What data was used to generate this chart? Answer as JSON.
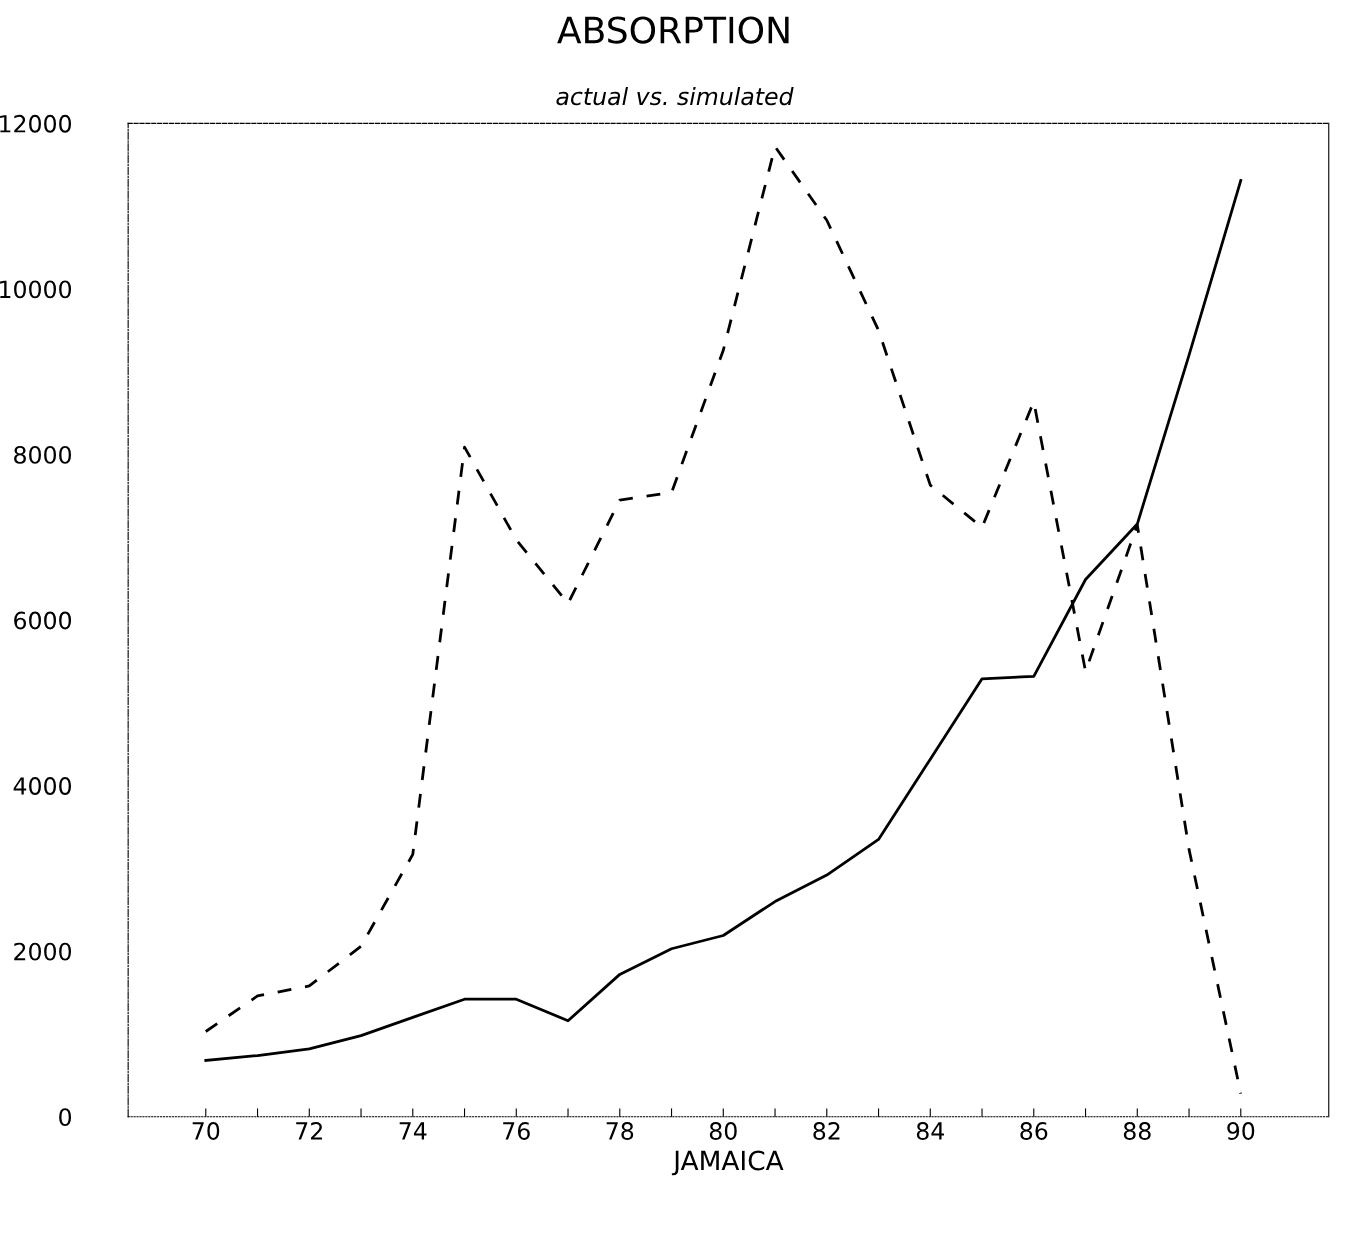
{
  "chart_data": {
    "type": "line",
    "title": "ABSORPTION",
    "subtitle": "actual vs. simulated",
    "xlabel": "JAMAICA",
    "x": [
      70,
      71,
      72,
      73,
      74,
      75,
      76,
      77,
      78,
      79,
      80,
      81,
      82,
      83,
      84,
      85,
      86,
      87,
      88,
      89,
      90
    ],
    "series": [
      {
        "color": "#000000",
        "line_style": "solid",
        "values": [
          680,
          740,
          820,
          980,
          1200,
          1420,
          1420,
          1160,
          1720,
          2030,
          2190,
          2600,
          2920,
          3350,
          4320,
          5290,
          5320,
          6490,
          7160,
          9200,
          11310
        ]
      },
      {
        "color": "#000000",
        "line_style": "dashed",
        "values": [
          1030,
          1460,
          1580,
          2060,
          3170,
          8090,
          6970,
          6200,
          7450,
          7540,
          9260,
          11720,
          10830,
          9500,
          7630,
          7120,
          8640,
          5380,
          7150,
          3230,
          280
        ]
      }
    ],
    "xlim": [
      68.5,
      91.7
    ],
    "xticks": [
      70,
      {
        "value": 71,
        "label": null
      },
      72,
      {
        "value": 73,
        "label": null
      },
      74,
      {
        "value": 75,
        "label": null
      },
      76,
      {
        "value": 77,
        "label": null
      },
      78,
      {
        "value": 79,
        "label": null
      },
      80,
      {
        "value": 81,
        "label": null
      },
      82,
      {
        "value": 83,
        "label": null
      },
      84,
      {
        "value": 85,
        "label": null
      },
      86,
      {
        "value": 87,
        "label": null
      },
      88,
      {
        "value": 89,
        "label": null
      },
      90
    ],
    "ylim": [
      0,
      12000
    ],
    "yticks": [
      0,
      2000,
      4000,
      6000,
      8000,
      10000,
      12000
    ],
    "grid": false,
    "legend": false,
    "marker": "none"
  }
}
